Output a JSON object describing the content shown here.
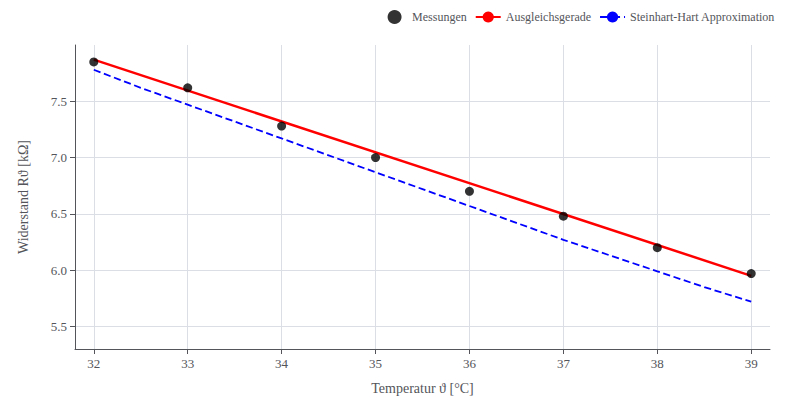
{
  "chart_data": {
    "type": "line",
    "x_label": "Temperatur ϑ [°C]",
    "y_label": "Widerstand Rϑ [kΩ]",
    "series": [
      {
        "name": "Messungen",
        "type": "scatter",
        "marker": "circle",
        "color": "#000000",
        "x": [
          32,
          33,
          34,
          35,
          36,
          37,
          38,
          39
        ],
        "values": [
          7.85,
          7.62,
          7.28,
          7.0,
          6.7,
          6.48,
          6.2,
          5.97
        ]
      },
      {
        "name": "Ausgleichsgerade",
        "type": "line",
        "line_style": "solid",
        "color": "#ff0000",
        "x": [
          32,
          39
        ],
        "values": [
          7.87,
          5.95
        ]
      },
      {
        "name": "Steinhart-Hart Approximation",
        "type": "line",
        "line_style": "dashed",
        "color": "#0000ff",
        "x": [
          32,
          32.5,
          33,
          33.5,
          34,
          34.5,
          35,
          35.5,
          36,
          36.5,
          37,
          37.5,
          38,
          38.5,
          39
        ],
        "values": [
          7.78,
          7.62,
          7.47,
          7.32,
          7.17,
          7.02,
          6.87,
          6.72,
          6.57,
          6.42,
          6.27,
          6.13,
          5.99,
          5.85,
          5.72
        ]
      }
    ],
    "xlim": [
      31.8,
      39.2
    ],
    "xticks": [
      32,
      33,
      34,
      35,
      36,
      37,
      38,
      39
    ],
    "ylim": [
      5.3,
      8.0
    ],
    "yticks": [
      {
        "value": 5.5,
        "label": "5.5"
      },
      {
        "value": 6.0,
        "label": "6.0"
      },
      {
        "value": 6.5,
        "label": "6.5"
      },
      {
        "value": 7.0,
        "label": "7.0"
      },
      {
        "value": 7.5,
        "label": "7.5"
      }
    ],
    "grid": true,
    "legend": "upper right"
  }
}
